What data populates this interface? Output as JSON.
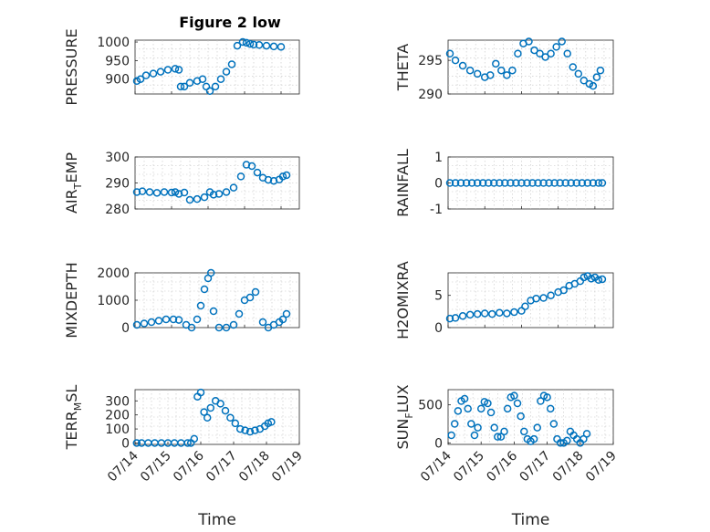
{
  "figure_title": "Figure 2 low",
  "colors": {
    "marker": "#0072BD",
    "axis": "#262626",
    "grid": "#c4c4c4"
  },
  "chart_data": [
    {
      "id": "pressure",
      "type": "scatter",
      "title": "Figure 2 low",
      "ylabel": "PRESSURE",
      "ylabel_sub": "",
      "ylabel_tail": "",
      "ylim": [
        860,
        1005
      ],
      "yticks": [
        "900",
        "950",
        "1000"
      ],
      "ytick_values": [
        900,
        950,
        1000
      ],
      "xlim": [
        "07/14",
        "07/18"
      ],
      "show_xticklabels": false,
      "xlabel": "",
      "x": [
        0.05,
        0.15,
        0.3,
        0.5,
        0.7,
        0.9,
        1.1,
        1.2,
        1.25,
        1.35,
        1.5,
        1.7,
        1.85,
        1.95,
        2.05,
        2.2,
        2.35,
        2.5,
        2.65,
        2.8,
        2.95,
        3.05,
        3.15,
        3.25,
        3.4,
        3.6,
        3.8,
        4.0
      ],
      "y": [
        895,
        900,
        910,
        915,
        920,
        925,
        928,
        925,
        880,
        880,
        890,
        895,
        900,
        880,
        868,
        880,
        900,
        920,
        940,
        990,
        1000,
        998,
        995,
        993,
        992,
        990,
        988,
        987
      ]
    },
    {
      "id": "theta",
      "type": "scatter",
      "title": "",
      "ylabel": "THETA",
      "ylabel_sub": "",
      "ylabel_tail": "",
      "ylim": [
        290,
        298
      ],
      "yticks": [
        "290",
        "295"
      ],
      "ytick_values": [
        290,
        295
      ],
      "xlim": [
        "07/14",
        "07/18"
      ],
      "show_xticklabels": false,
      "xlabel": "",
      "x": [
        0.05,
        0.2,
        0.4,
        0.6,
        0.8,
        1.0,
        1.15,
        1.3,
        1.45,
        1.6,
        1.75,
        1.9,
        2.05,
        2.2,
        2.35,
        2.5,
        2.65,
        2.8,
        2.95,
        3.1,
        3.25,
        3.4,
        3.55,
        3.7,
        3.85,
        3.95,
        4.05,
        4.15
      ],
      "y": [
        296,
        295,
        294.2,
        293.5,
        293,
        292.5,
        292.8,
        294.5,
        293.5,
        292.8,
        293.5,
        296,
        297.5,
        297.8,
        296.5,
        296,
        295.5,
        296,
        297,
        297.8,
        296,
        294,
        293,
        292,
        291.5,
        291.2,
        292.5,
        293.5
      ]
    },
    {
      "id": "airtemp",
      "type": "scatter",
      "title": "",
      "ylabel": "AIR",
      "ylabel_sub": "T",
      "ylabel_tail": "EMP",
      "ylim": [
        280,
        300
      ],
      "yticks": [
        "280",
        "290",
        "300"
      ],
      "ytick_values": [
        280,
        290,
        300
      ],
      "xlim": [
        "07/14",
        "07/18"
      ],
      "show_xticklabels": false,
      "xlabel": "",
      "x": [
        0.05,
        0.2,
        0.4,
        0.6,
        0.8,
        1.0,
        1.1,
        1.2,
        1.35,
        1.5,
        1.7,
        1.9,
        2.05,
        2.15,
        2.3,
        2.5,
        2.7,
        2.9,
        3.05,
        3.2,
        3.35,
        3.5,
        3.65,
        3.8,
        3.95,
        4.05,
        4.15
      ],
      "y": [
        286.5,
        286.8,
        286.5,
        286.2,
        286.5,
        286.3,
        286.5,
        285.8,
        286.3,
        283.5,
        283.8,
        284.5,
        286.5,
        285.5,
        285.8,
        286.5,
        288.2,
        292.5,
        297,
        296.5,
        294,
        292,
        291.2,
        290.8,
        291.3,
        292.5,
        293
      ]
    },
    {
      "id": "rainfall",
      "type": "scatter",
      "title": "",
      "ylabel": "RAINFALL",
      "ylabel_sub": "",
      "ylabel_tail": "",
      "ylim": [
        -1,
        1
      ],
      "yticks": [
        "-1",
        "0",
        "1"
      ],
      "ytick_values": [
        -1,
        0,
        1
      ],
      "xlim": [
        "07/14",
        "07/18"
      ],
      "show_xticklabels": false,
      "xlabel": "",
      "x": [
        0.05,
        0.2,
        0.35,
        0.5,
        0.65,
        0.8,
        0.95,
        1.1,
        1.25,
        1.4,
        1.55,
        1.7,
        1.85,
        2.0,
        2.15,
        2.3,
        2.45,
        2.6,
        2.75,
        2.9,
        3.05,
        3.2,
        3.35,
        3.5,
        3.65,
        3.8,
        3.95,
        4.1,
        4.2
      ],
      "y": [
        0,
        0,
        0,
        0,
        0,
        0,
        0,
        0,
        0,
        0,
        0,
        0,
        0,
        0,
        0,
        0,
        0,
        0,
        0,
        0,
        0,
        0,
        0,
        0,
        0,
        0,
        0,
        0,
        0
      ]
    },
    {
      "id": "mixdepth",
      "type": "scatter",
      "title": "",
      "ylabel": "MIXDEPTH",
      "ylabel_sub": "",
      "ylabel_tail": "",
      "ylim": [
        0,
        2000
      ],
      "yticks": [
        "0",
        "1000",
        "2000"
      ],
      "ytick_values": [
        0,
        1000,
        2000
      ],
      "xlim": [
        "07/14",
        "07/18"
      ],
      "show_xticklabels": false,
      "xlabel": "",
      "x": [
        0.05,
        0.25,
        0.45,
        0.65,
        0.85,
        1.05,
        1.2,
        1.4,
        1.55,
        1.7,
        1.8,
        1.9,
        2.0,
        2.08,
        2.15,
        2.3,
        2.5,
        2.7,
        2.85,
        3.0,
        3.15,
        3.3,
        3.5,
        3.65,
        3.8,
        3.95,
        4.05,
        4.15
      ],
      "y": [
        100,
        150,
        200,
        250,
        300,
        300,
        280,
        100,
        0,
        300,
        800,
        1400,
        1800,
        2000,
        600,
        0,
        0,
        100,
        500,
        1000,
        1100,
        1300,
        200,
        0,
        100,
        200,
        300,
        500
      ]
    },
    {
      "id": "h2omixra",
      "type": "scatter",
      "title": "",
      "ylabel": "H2OMIXRA",
      "ylabel_sub": "",
      "ylabel_tail": "",
      "ylim": [
        0,
        8.5
      ],
      "yticks": [
        "0",
        "5"
      ],
      "ytick_values": [
        0,
        5
      ],
      "xlim": [
        "07/14",
        "07/18"
      ],
      "show_xticklabels": false,
      "xlabel": "",
      "x": [
        0.05,
        0.2,
        0.4,
        0.6,
        0.8,
        1.0,
        1.2,
        1.4,
        1.6,
        1.8,
        2.0,
        2.1,
        2.25,
        2.4,
        2.6,
        2.8,
        3.0,
        3.15,
        3.3,
        3.45,
        3.6,
        3.7,
        3.8,
        3.9,
        4.0,
        4.1,
        4.2
      ],
      "y": [
        1.4,
        1.5,
        1.8,
        2.0,
        2.1,
        2.2,
        2.1,
        2.3,
        2.2,
        2.4,
        2.6,
        3.3,
        4.2,
        4.5,
        4.6,
        5.0,
        5.5,
        5.8,
        6.5,
        6.8,
        7.2,
        7.8,
        8.0,
        7.6,
        7.8,
        7.4,
        7.5
      ]
    },
    {
      "id": "terr_msl",
      "type": "scatter",
      "title": "",
      "ylabel": "TERR",
      "ylabel_sub": "M",
      "ylabel_tail": "SL",
      "ylim": [
        -10,
        380
      ],
      "yticks": [
        "0",
        "100",
        "200",
        "300"
      ],
      "ytick_values": [
        0,
        100,
        200,
        300
      ],
      "xlim": [
        "07/14",
        "07/19"
      ],
      "xticklabels": [
        "07/14",
        "07/15",
        "07/16",
        "07/17",
        "07/18",
        "07/19"
      ],
      "show_xticklabels": true,
      "xlabel": "Time",
      "x": [
        0.05,
        0.2,
        0.4,
        0.6,
        0.8,
        1.0,
        1.2,
        1.4,
        1.6,
        1.7,
        1.8,
        1.9,
        2.0,
        2.1,
        2.2,
        2.3,
        2.45,
        2.6,
        2.75,
        2.9,
        3.05,
        3.2,
        3.35,
        3.5,
        3.65,
        3.8,
        3.95,
        4.05,
        4.15
      ],
      "y": [
        0,
        0,
        0,
        0,
        0,
        0,
        0,
        0,
        0,
        0,
        30,
        330,
        360,
        220,
        180,
        250,
        300,
        280,
        230,
        180,
        140,
        100,
        90,
        80,
        90,
        100,
        120,
        140,
        150
      ]
    },
    {
      "id": "sun_flux",
      "type": "scatter",
      "title": "",
      "ylabel": "SUN",
      "ylabel_sub": "F",
      "ylabel_tail": "LUX",
      "ylim": [
        -20,
        700
      ],
      "yticks": [
        "0",
        "500"
      ],
      "ytick_values": [
        0,
        500
      ],
      "xlim": [
        "07/14",
        "07/19"
      ],
      "xticklabels": [
        "07/14",
        "07/15",
        "07/16",
        "07/17",
        "07/18",
        "07/19"
      ],
      "show_xticklabels": true,
      "xlabel": "Time",
      "x": [
        0.1,
        0.2,
        0.3,
        0.4,
        0.5,
        0.6,
        0.7,
        0.8,
        0.9,
        1.0,
        1.1,
        1.2,
        1.3,
        1.4,
        1.5,
        1.6,
        1.7,
        1.8,
        1.9,
        2.0,
        2.1,
        2.2,
        2.3,
        2.4,
        2.5,
        2.6,
        2.7,
        2.8,
        2.9,
        3.0,
        3.1,
        3.2,
        3.3,
        3.4,
        3.5,
        3.6,
        3.7,
        3.8,
        3.9,
        4.0,
        4.1,
        4.2
      ],
      "y": [
        100,
        250,
        420,
        550,
        580,
        450,
        250,
        100,
        200,
        450,
        540,
        520,
        400,
        200,
        80,
        80,
        150,
        450,
        600,
        620,
        520,
        350,
        150,
        50,
        20,
        50,
        200,
        550,
        620,
        600,
        450,
        250,
        50,
        0,
        0,
        30,
        150,
        100,
        50,
        0,
        50,
        120
      ]
    }
  ]
}
